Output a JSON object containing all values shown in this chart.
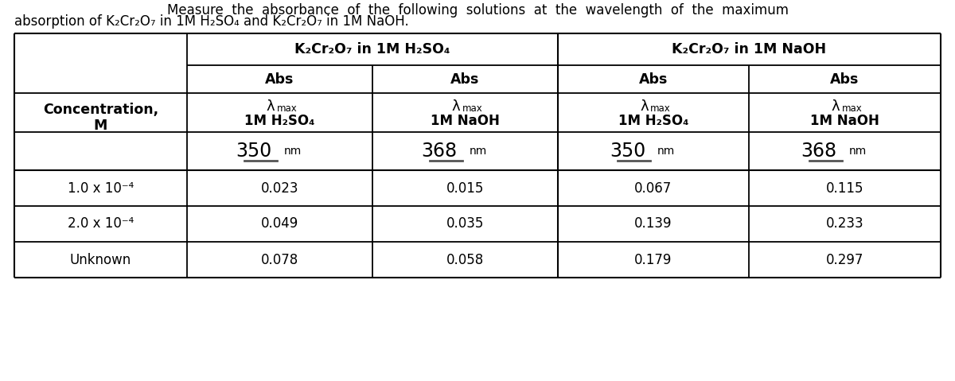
{
  "title_line1": "Measure  the  absorbance  of  the  following  solutions  at  the  wavelength  of  the  maximum",
  "title_line2": "absorption of K₂Cr₂O₇ in 1M H₂SO₄ and K₂Cr₂O₇ in 1M NaOH.",
  "col_group1_label": "K₂Cr₂O₇ in 1M H₂SO₄",
  "col_group2_label": "K₂Cr₂O₇ in 1M NaOH",
  "row_header_line1": "Concentration,",
  "row_header_line2": "M",
  "col_solvents": [
    "1M H₂SO₄",
    "1M NaOH",
    "1M H₂SO₄",
    "1M NaOH"
  ],
  "col_wavelengths": [
    "350",
    "368",
    "350",
    "368"
  ],
  "row_labels": [
    "1.0 x 10⁻⁴",
    "2.0 x 10⁻⁴",
    "Unknown"
  ],
  "data": [
    [
      "0.023",
      "0.015",
      "0.067",
      "0.115"
    ],
    [
      "0.049",
      "0.035",
      "0.139",
      "0.233"
    ],
    [
      "0.078",
      "0.058",
      "0.179",
      "0.297"
    ]
  ],
  "bg_color": "#ffffff",
  "text_color": "#000000"
}
